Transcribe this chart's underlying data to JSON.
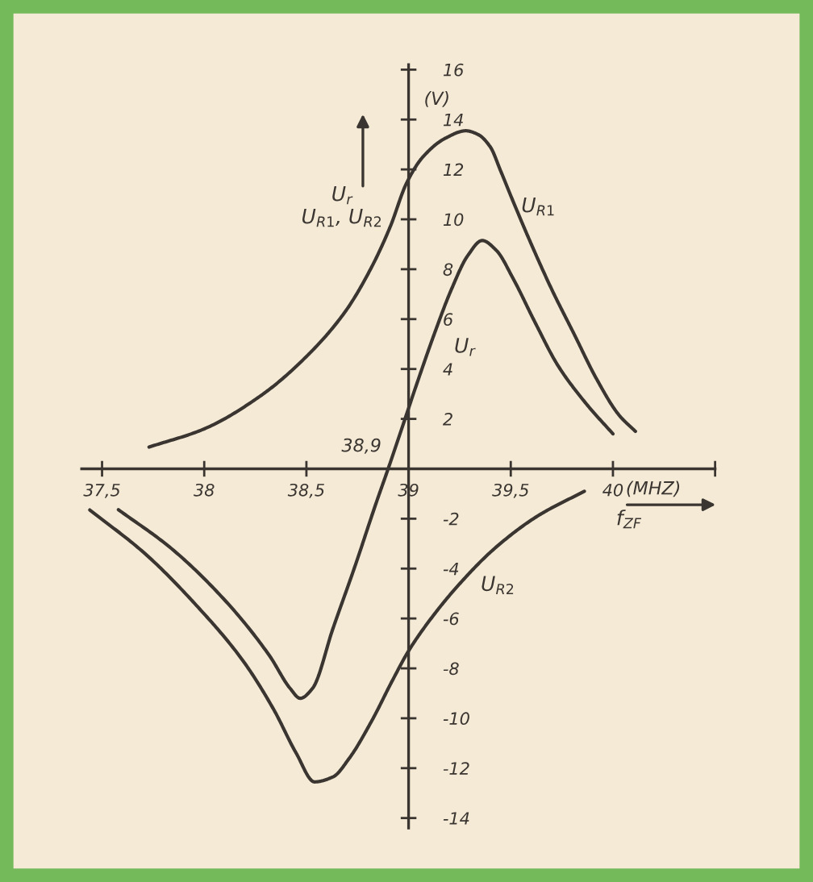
{
  "chart_data": {
    "type": "line",
    "xlabel": "f$_{ZF}$",
    "ylabel": "U$_{r}$\nU$_{R1}$, U$_{R2}$",
    "xlim": [
      37.4,
      40.5
    ],
    "ylim": [
      -14.4,
      16.2
    ],
    "xticks": [
      {
        "value": 37.5,
        "label": "37,5"
      },
      38,
      {
        "value": 38.5,
        "label": "38,5"
      },
      39,
      {
        "value": 39.5,
        "label": "39,5"
      },
      40,
      {
        "value": 40.5,
        "label": null
      }
    ],
    "yticks": [
      16,
      14,
      12,
      10,
      8,
      6,
      4,
      2,
      -2,
      -4,
      -6,
      -8,
      -10,
      -12,
      -14
    ],
    "annotations": [
      "(V)",
      "(MHZ)",
      {
        "text": "38,9",
        "x": 38.9,
        "y": 0
      }
    ],
    "series": [
      {
        "name": "U$_{R1}$",
        "color": "#3a3530",
        "x": [
          37.73,
          38.0,
          38.28,
          38.5,
          38.69,
          38.82,
          38.91,
          38.99,
          39.07,
          39.18,
          39.28,
          39.34,
          39.4,
          39.45,
          39.51,
          39.59,
          39.7,
          39.81,
          39.92,
          40.03,
          40.11
        ],
        "values": [
          0.87,
          1.6,
          2.95,
          4.5,
          6.3,
          8.1,
          9.7,
          11.45,
          12.5,
          13.25,
          13.55,
          13.4,
          12.9,
          11.95,
          10.75,
          9.2,
          7.2,
          5.4,
          3.6,
          2.15,
          1.5
        ]
      },
      {
        "name": "U$_{r}$",
        "color": "#3a3530",
        "x": [
          37.58,
          37.84,
          38.11,
          38.32,
          38.42,
          38.47,
          38.53,
          38.63,
          38.74,
          38.84,
          38.9,
          38.96,
          39.04,
          39.13,
          39.21,
          39.29,
          39.36,
          39.43,
          39.51,
          39.62,
          39.73,
          39.87,
          40.0
        ],
        "values": [
          -1.64,
          -3.2,
          -5.35,
          -7.5,
          -8.8,
          -9.2,
          -8.8,
          -6.4,
          -3.85,
          -1.4,
          0,
          1.45,
          3.4,
          5.5,
          7.2,
          8.55,
          9.15,
          8.75,
          7.65,
          5.85,
          4.15,
          2.6,
          1.4
        ]
      },
      {
        "name": "U$_{R2}$",
        "color": "#3a3530",
        "x": [
          37.44,
          37.71,
          37.97,
          38.19,
          38.34,
          38.45,
          38.54,
          38.63,
          38.71,
          38.82,
          38.92,
          39.0,
          39.11,
          39.24,
          39.42,
          39.63,
          39.86
        ],
        "values": [
          -1.65,
          -3.4,
          -5.55,
          -7.7,
          -9.65,
          -11.4,
          -12.55,
          -12.35,
          -11.6,
          -10.1,
          -8.5,
          -7.3,
          -6.0,
          -4.7,
          -3.2,
          -1.9,
          -0.9
        ]
      }
    ]
  }
}
